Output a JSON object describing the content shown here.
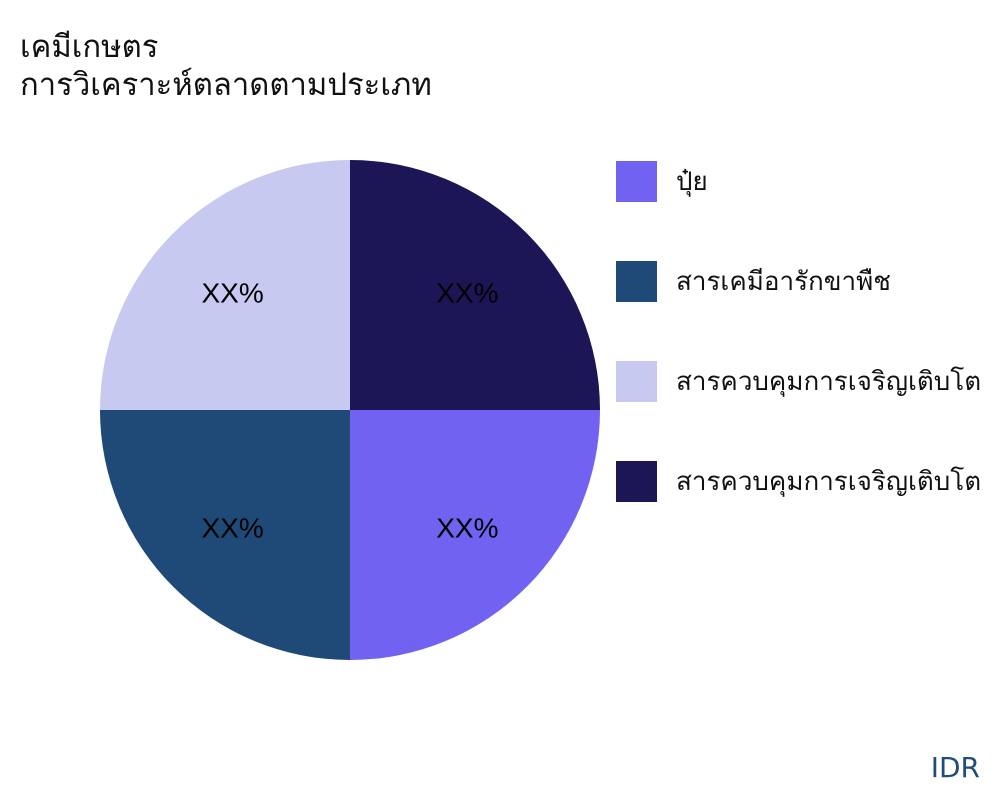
{
  "title": "เคมีเกษตร",
  "subtitle": "การวิเคราะห์ตลาดตามประเภท",
  "source_label": "IDR",
  "chart_data": {
    "type": "pie",
    "title": "เคมีเกษตร",
    "subtitle": "การวิเคราะห์ตลาดตามประเภท",
    "categories": [
      "ปุ๋ย",
      "สารเคมีอารักขาพืช",
      "สารควบคุมการเจริญเติบโต",
      "สารควบคุมการเจริญเติบโต"
    ],
    "values": [
      25,
      25,
      25,
      25
    ],
    "data_labels": [
      "XX%",
      "XX%",
      "XX%",
      "XX%"
    ],
    "colors": [
      "#7162f2",
      "#1f4a78",
      "#c8c9f0",
      "#1c1656"
    ],
    "start_angle": "3 o'clock, clockwise",
    "legend_position": "right"
  }
}
